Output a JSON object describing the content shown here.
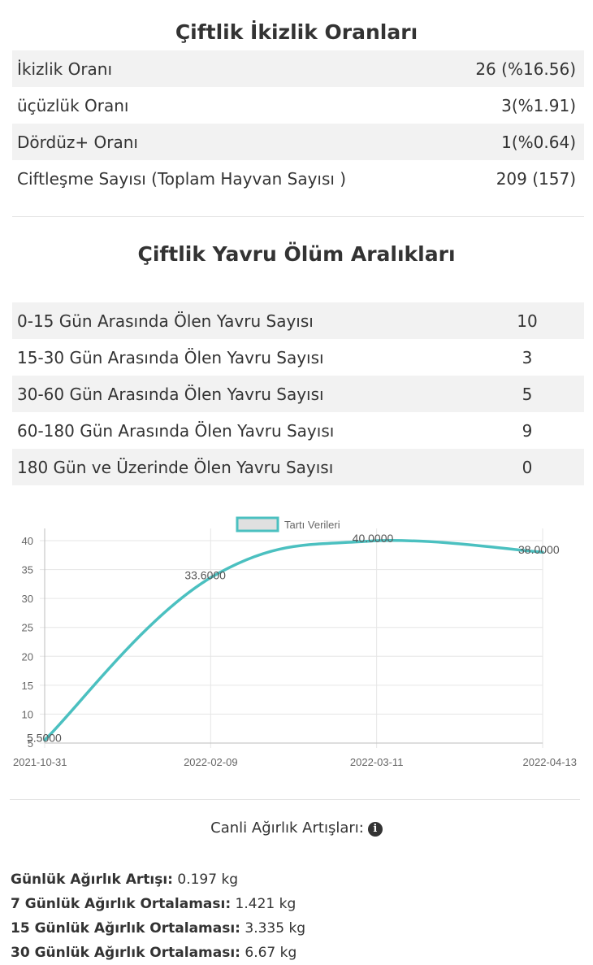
{
  "twin_section": {
    "title": "Çiftlik İkizlik Oranları",
    "rows": [
      {
        "label": "İkizlik Oranı",
        "value": "26 (%16.56)"
      },
      {
        "label": "üçüzlük Oranı",
        "value": "3(%1.91)"
      },
      {
        "label": "Dördüz+ Oranı",
        "value": "1(%0.64)"
      },
      {
        "label": "Ciftleşme Sayısı (Toplam Hayvan Sayısı )",
        "value": "209 (157)"
      }
    ]
  },
  "death_section": {
    "title": "Çiftlik Yavru Ölüm Aralıkları",
    "rows": [
      {
        "label": "0-15 Gün Arasında Ölen Yavru Sayısı",
        "value": "10"
      },
      {
        "label": "15-30 Gün Arasında Ölen Yavru Sayısı",
        "value": "3"
      },
      {
        "label": "30-60 Gün Arasında Ölen Yavru Sayısı",
        "value": "5"
      },
      {
        "label": "60-180 Gün Arasında Ölen Yavru Sayısı",
        "value": "9"
      },
      {
        "label": "180 Gün ve Üzerinde Ölen Yavru Sayısı",
        "value": "0"
      }
    ]
  },
  "chart_data": {
    "type": "line",
    "title": "",
    "xlabel": "",
    "ylabel": "",
    "x": [
      "2021-10-31",
      "2022-02-09",
      "2022-03-11",
      "2022-04-13"
    ],
    "series": [
      {
        "name": "Tartı Verileri",
        "values": [
          5.5,
          33.6,
          40.0,
          38.0
        ],
        "data_labels": [
          "5.5000",
          "33.6000",
          "40.0000",
          "38.0000"
        ],
        "color": "#4bc0c0",
        "fill": "#e0e0e0"
      }
    ],
    "ylim": [
      5,
      40
    ],
    "yticks": [
      "5",
      "10",
      "15",
      "20",
      "25",
      "30",
      "35",
      "40"
    ],
    "grid": true,
    "legend": "top-center"
  },
  "gain_section": {
    "title": "Canli Ağırlık Artışları:",
    "info_icon": "info-circle-icon",
    "info_glyph": "i",
    "items": [
      {
        "label": "Günlük Ağırlık Artışı:",
        "value": " 0.197 kg"
      },
      {
        "label": "7 Günlük Ağırlık Ortalaması:",
        "value": " 1.421 kg"
      },
      {
        "label": "15 Günlük Ağırlık Ortalaması:",
        "value": " 3.335 kg"
      },
      {
        "label": "30 Günlük Ağırlık Ortalaması:",
        "value": " 6.67 kg"
      }
    ]
  }
}
